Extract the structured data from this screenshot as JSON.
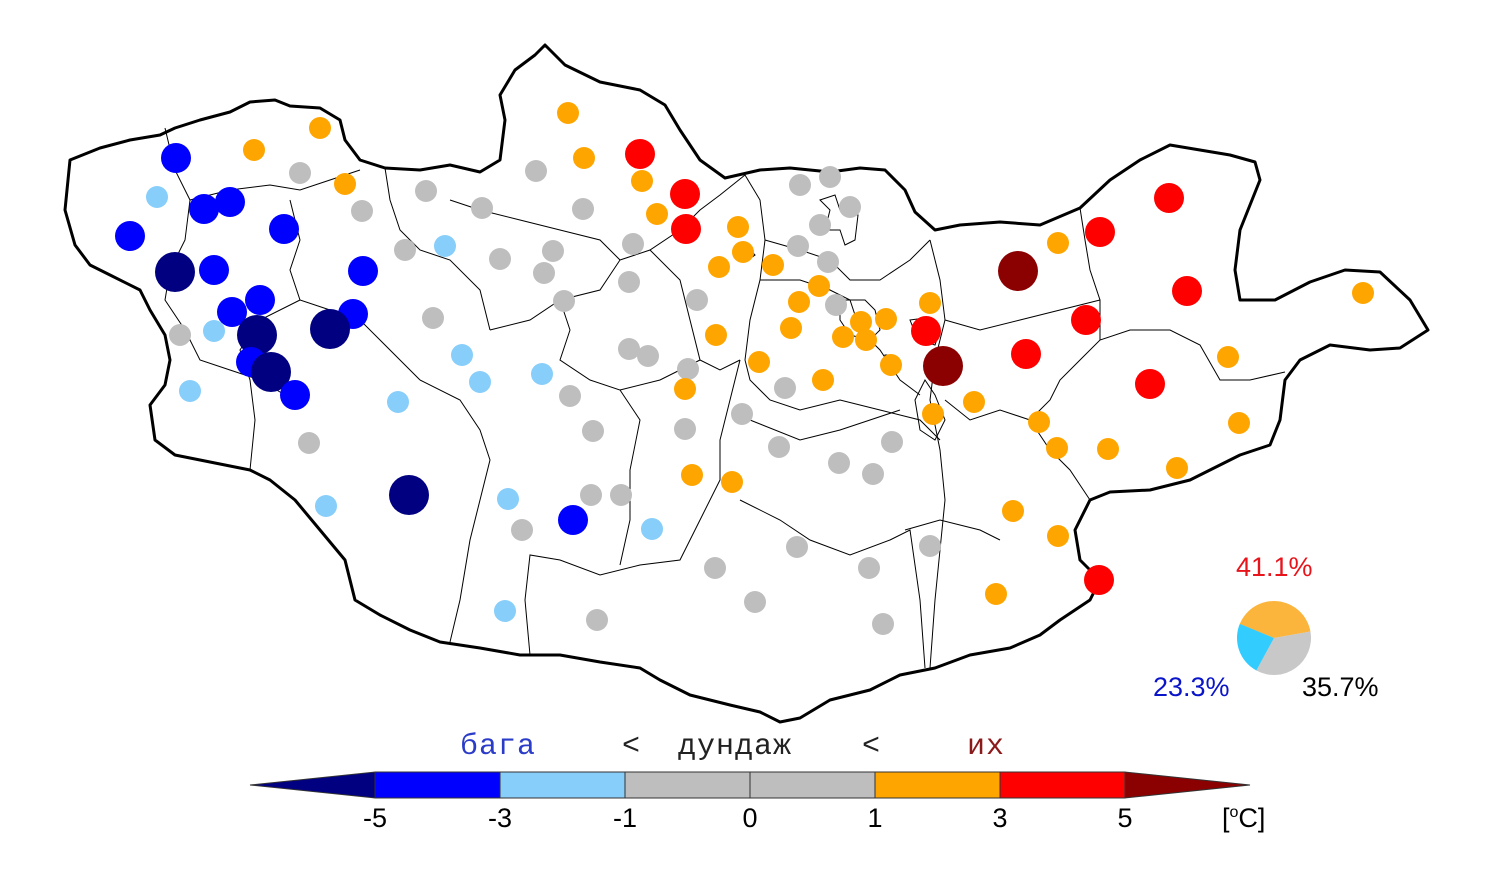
{
  "legend": {
    "category_labels": {
      "low": "бага",
      "separator_1": "<",
      "normal": "дундаж",
      "separator_2": "<",
      "high": "их"
    },
    "tick_labels": [
      "-5",
      "-3",
      "-1",
      "0",
      "1",
      "3",
      "5"
    ],
    "unit": "[°C]",
    "unit_prefix": "[",
    "unit_degree": "o",
    "unit_suffix": "C]",
    "bins": [
      {
        "range": "< -5",
        "color": "#000080"
      },
      {
        "range": "-5 to -3",
        "color": "#0000ff"
      },
      {
        "range": "-3 to -1",
        "color": "#87cefa"
      },
      {
        "range": "-1 to 0",
        "color": "#bebebe"
      },
      {
        "range": "0 to 1",
        "color": "#bebebe"
      },
      {
        "range": "1 to 3",
        "color": "#ffa500"
      },
      {
        "range": "3 to 5",
        "color": "#ff0000"
      },
      {
        "range": "> 5",
        "color": "#8b0000"
      }
    ]
  },
  "pie": {
    "above_normal": {
      "text": "41.1%",
      "value": 41.1,
      "color": "#fbb43c",
      "label_color": "#e8141c"
    },
    "normal": {
      "text": "35.7%",
      "value": 35.7,
      "color": "#c8c8c8",
      "label_color": "#000000"
    },
    "below_normal": {
      "text": "23.3%",
      "value": 23.3,
      "color": "#33ccff",
      "label_color": "#0a14c8"
    }
  },
  "category_colors": {
    "dark_blue": "#000080",
    "blue": "#0000ff",
    "light_blue": "#87cefa",
    "gray": "#bebebe",
    "orange": "#ffa500",
    "red": "#ff0000",
    "dark_red": "#8b0000"
  },
  "station_counts": {
    "dark_blue": 6,
    "blue": 14,
    "light_blue": 14,
    "gray": 54,
    "orange": 41,
    "red": 14,
    "dark_red": 2
  },
  "label_colors": {
    "low": "#2a3cc8",
    "high": "#8b1a1a"
  }
}
